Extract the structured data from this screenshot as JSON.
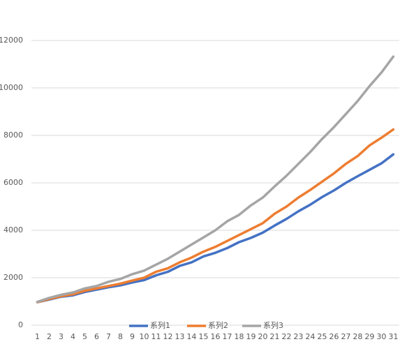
{
  "chart_data": {
    "type": "line",
    "categories": [
      "1",
      "2",
      "3",
      "4",
      "5",
      "6",
      "7",
      "8",
      "9",
      "10",
      "11",
      "12",
      "13",
      "14",
      "15",
      "16",
      "17",
      "18",
      "19",
      "20",
      "21",
      "22",
      "23",
      "24",
      "25",
      "26",
      "27",
      "28",
      "29",
      "30",
      "31"
    ],
    "series": [
      {
        "name": "系列1",
        "color": "#4472c4",
        "values": [
          970,
          1080,
          1200,
          1260,
          1400,
          1500,
          1600,
          1680,
          1800,
          1900,
          2100,
          2250,
          2500,
          2650,
          2900,
          3050,
          3250,
          3500,
          3680,
          3900,
          4200,
          4480,
          4800,
          5080,
          5400,
          5680,
          6000,
          6280,
          6550,
          6820,
          7200
        ]
      },
      {
        "name": "系列2",
        "color": "#ed7d31",
        "values": [
          970,
          1100,
          1220,
          1300,
          1450,
          1550,
          1650,
          1750,
          1880,
          2000,
          2250,
          2400,
          2650,
          2850,
          3100,
          3300,
          3550,
          3800,
          4050,
          4300,
          4700,
          5000,
          5380,
          5700,
          6050,
          6400,
          6800,
          7130,
          7580,
          7900,
          8250
        ]
      },
      {
        "name": "系列3",
        "color": "#a5a5a5",
        "values": [
          980,
          1150,
          1280,
          1380,
          1550,
          1650,
          1830,
          1950,
          2150,
          2300,
          2550,
          2800,
          3100,
          3400,
          3700,
          4000,
          4380,
          4650,
          5050,
          5380,
          5850,
          6300,
          6800,
          7300,
          7850,
          8350,
          8900,
          9450,
          10080,
          10650,
          11320
        ]
      }
    ],
    "ylim": [
      0,
      12000
    ],
    "yticks": [
      0,
      2000,
      4000,
      6000,
      8000,
      10000,
      12000
    ],
    "grid": true,
    "legend": "bottom"
  }
}
